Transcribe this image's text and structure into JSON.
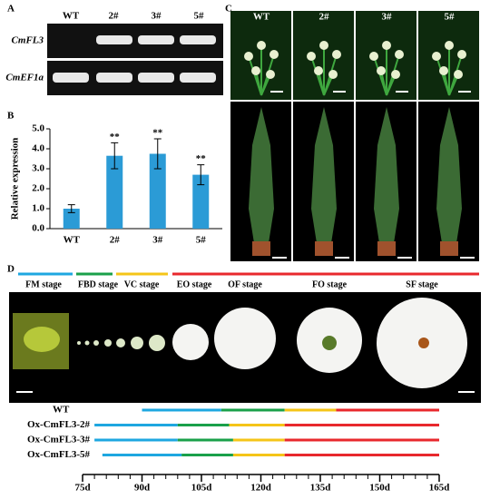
{
  "panels": {
    "a": "A",
    "b": "B",
    "c": "C",
    "d": "D"
  },
  "gel": {
    "lanes": [
      "WT",
      "2#",
      "3#",
      "5#"
    ],
    "genes": [
      "CmFL3",
      "CmEF1a"
    ]
  },
  "photos": {
    "labels": [
      "WT",
      "2#",
      "3#",
      "5#"
    ]
  },
  "stages": [
    "FM stage",
    "FBD stage",
    "VC stage",
    "EO stage",
    "OF stage",
    "FO stage",
    "SF stage"
  ],
  "chart_data": [
    {
      "type": "bar",
      "ylabel": "Relative expression",
      "categories": [
        "WT",
        "2#",
        "3#",
        "5#"
      ],
      "values": [
        1.0,
        3.65,
        3.75,
        2.7
      ],
      "errors": [
        0.2,
        0.65,
        0.75,
        0.5
      ],
      "annotations": [
        null,
        "**",
        "**",
        "**"
      ],
      "color": "#2b9bd6",
      "ylim": [
        0,
        5
      ],
      "yticks": [
        {
          "value": 0,
          "label": "0.0"
        },
        {
          "value": 1,
          "label": "1.0"
        },
        {
          "value": 2,
          "label": "2.0"
        },
        {
          "value": 3,
          "label": "3.0"
        },
        {
          "value": 4,
          "label": "4.0"
        },
        {
          "value": 5,
          "label": "5.0"
        }
      ]
    },
    {
      "type": "timeline",
      "segment_colors": [
        "#1ea7e0",
        "#1aa04a",
        "#f5c518",
        "#e8282d"
      ],
      "series": [
        {
          "name": "WT",
          "values": [
            90,
            110,
            126,
            139,
            165
          ]
        },
        {
          "name": "Ox-CmFL3-2#",
          "values": [
            78,
            99,
            112,
            126,
            165
          ]
        },
        {
          "name": "Ox-CmFL3-3#",
          "values": [
            78,
            99,
            113,
            126,
            165
          ]
        },
        {
          "name": "Ox-CmFL3-5#",
          "values": [
            80,
            100,
            113,
            126,
            165
          ]
        }
      ],
      "xlim": [
        75,
        165
      ],
      "xticks": [
        {
          "value": 75,
          "label": "75d"
        },
        {
          "value": 90,
          "label": "90d"
        },
        {
          "value": 105,
          "label": "105d"
        },
        {
          "value": 120,
          "label": "120d"
        },
        {
          "value": 135,
          "label": "135d"
        },
        {
          "value": 150,
          "label": "150d"
        },
        {
          "value": 165,
          "label": "165d"
        }
      ],
      "minor_xticks": [
        78,
        81,
        84,
        87,
        93,
        96,
        99,
        102,
        108,
        111,
        114,
        117,
        123,
        126,
        129,
        132,
        138,
        141,
        144,
        147,
        153,
        156,
        159,
        162
      ]
    }
  ]
}
